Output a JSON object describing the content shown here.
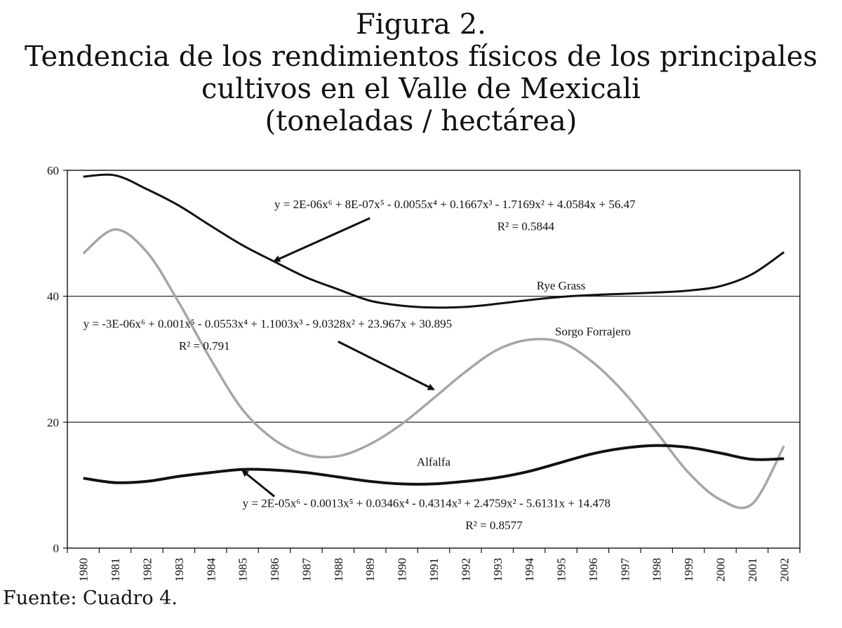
{
  "title_lines": [
    "Figura 2.",
    "Tendencia de los rendimientos físicos de los principales",
    "cultivos en el Valle de Mexicali",
    "(toneladas / hectárea)"
  ],
  "source": "Fuente: Cuadro 4.",
  "chart_data": {
    "type": "line",
    "categories": [
      "1980",
      "1981",
      "1982",
      "1983",
      "1984",
      "1985",
      "1986",
      "1987",
      "1988",
      "1989",
      "1990",
      "1991",
      "1992",
      "1993",
      "1994",
      "1995",
      "1996",
      "1997",
      "1998",
      "1999",
      "2000",
      "2001",
      "2002"
    ],
    "ylim": [
      0,
      60
    ],
    "yticks": [
      0,
      20,
      40,
      60
    ],
    "grid": "horizontal at 20, 40, 60",
    "colors": {
      "rye": "#111111",
      "sorgo": "#a6a6a6",
      "alfalfa": "#111111",
      "arrow": "#111111"
    },
    "series": [
      {
        "name": "Rye Grass",
        "values": [
          59.0,
          59.2,
          57.0,
          54.4,
          51.2,
          48.1,
          45.5,
          43.0,
          41.1,
          39.3,
          38.5,
          38.2,
          38.3,
          38.8,
          39.4,
          39.9,
          40.2,
          40.4,
          40.6,
          40.9,
          41.6,
          43.5,
          47.0
        ]
      },
      {
        "name": "Sorgo Forrajero",
        "values": [
          46.8,
          50.6,
          47.0,
          39.0,
          30.0,
          22.0,
          17.2,
          14.8,
          14.6,
          16.5,
          19.7,
          23.8,
          28.0,
          31.5,
          33.1,
          32.7,
          29.5,
          24.6,
          18.4,
          12.0,
          7.7,
          7.0,
          16.2
        ]
      },
      {
        "name": "Alfalfa",
        "values": [
          11.1,
          10.4,
          10.6,
          11.4,
          12.0,
          12.5,
          12.4,
          12.0,
          11.3,
          10.6,
          10.2,
          10.2,
          10.6,
          11.2,
          12.2,
          13.6,
          15.0,
          15.9,
          16.3,
          16.0,
          15.1,
          14.1,
          14.2
        ]
      }
    ],
    "labels": [
      {
        "text": "Rye Grass",
        "x": "1995",
        "y": 41.1
      },
      {
        "text": "Sorgo Forrajero",
        "x": "1996",
        "y": 33.8
      },
      {
        "text": "Alfalfa",
        "x": "1991",
        "y": 13.1
      }
    ],
    "equations": [
      {
        "text": "y = 2E-06x⁶ + 8E-07x⁵ - 0.0055x⁴ + 0.1667x³ - 1.7169x² + 4.0584x + 56.47",
        "r2": "R² = 0.5844",
        "anchor_x": "1986",
        "anchor_y": 54.0,
        "r2_x": "1993",
        "r2_y": 50.5,
        "arrow_from": [
          "1989",
          52.4
        ],
        "arrow_to": [
          "1986",
          45.6
        ]
      },
      {
        "text": "y = -3E-06x⁶ + 0.001x⁵ - 0.0553x⁴ + 1.1003x³ - 9.0328x² + 23.967x + 30.895",
        "r2": "R² = 0.791",
        "anchor_x": "1980",
        "anchor_y": 35.0,
        "r2_x": "1983",
        "r2_y": 31.5,
        "arrow_from": [
          "1988",
          32.8
        ],
        "arrow_to": [
          "1991",
          25.2
        ]
      },
      {
        "text": "y = 2E-05x⁶ - 0.0013x⁵ + 0.0346x⁴ - 0.4314x³ + 2.4759x² - 5.6131x + 14.478",
        "r2": "R² = 0.8577",
        "anchor_x": "1985",
        "anchor_y": 6.5,
        "r2_x": "1992",
        "r2_y": 3.0,
        "arrow_from": [
          "1986",
          8.2
        ],
        "arrow_to": [
          "1985",
          12.3
        ]
      }
    ]
  }
}
